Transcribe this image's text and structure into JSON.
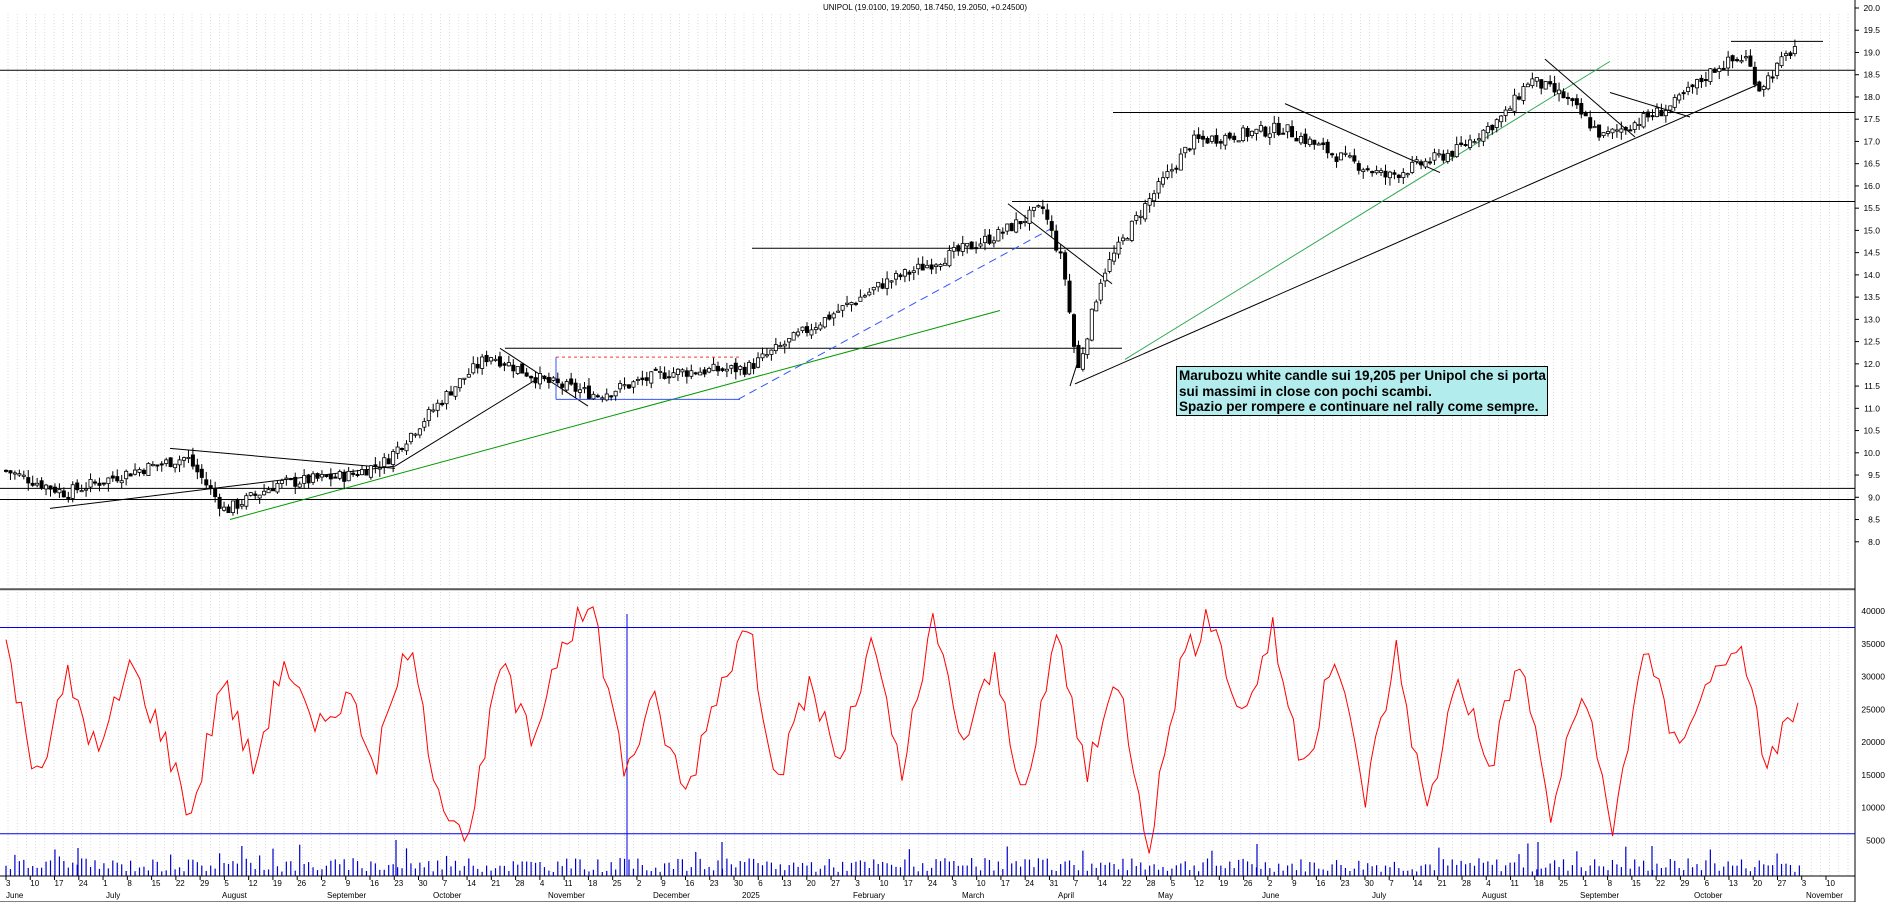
{
  "header": {
    "title": "UNIPOL (19.0100, 19.2050, 18.7450, 19.2050, +0.24500)"
  },
  "annotation": {
    "lines": [
      "Marubozu white candle sui 19,205 per Unipol che si porta",
      "sui massimi in close con pochi scambi.",
      "Spazio per rompere e continuare nel rally come sempre."
    ]
  },
  "chart_data": [
    {
      "type": "candlestick",
      "series_name": "UNIPOL",
      "ylim": [
        7.5,
        20.0
      ],
      "y_ticks": [
        "8.0",
        "8.5",
        "9.0",
        "9.5",
        "10.0",
        "10.5",
        "11.0",
        "11.5",
        "12.0",
        "12.5",
        "13.0",
        "13.5",
        "14.0",
        "14.5",
        "15.0",
        "15.5",
        "16.0",
        "16.5",
        "17.0",
        "17.5",
        "18.0",
        "18.5",
        "19.0",
        "19.5",
        "20.0"
      ],
      "last_bar": {
        "open": 19.01,
        "high": 19.205,
        "low": 18.745,
        "close": 19.205,
        "change": 0.245
      },
      "horizontal_levels": [
        8.95,
        9.2,
        12.35,
        14.6,
        15.65,
        17.65,
        18.6,
        19.25
      ],
      "close_path": [
        [
          "2024-06-03",
          9.6
        ],
        [
          "2024-06-20",
          9.1
        ],
        [
          "2024-07-10",
          9.6
        ],
        [
          "2024-07-25",
          9.9
        ],
        [
          "2024-08-05",
          8.7
        ],
        [
          "2024-08-20",
          9.3
        ],
        [
          "2024-09-10",
          9.5
        ],
        [
          "2024-09-20",
          9.8
        ],
        [
          "2024-10-10",
          11.5
        ],
        [
          "2024-10-20",
          12.2
        ],
        [
          "2024-11-05",
          11.6
        ],
        [
          "2024-11-20",
          11.3
        ],
        [
          "2024-12-10",
          11.8
        ],
        [
          "2025-01-02",
          11.9
        ],
        [
          "2025-01-20",
          12.8
        ],
        [
          "2025-02-10",
          13.8
        ],
        [
          "2025-02-25",
          14.3
        ],
        [
          "2025-03-15",
          14.9
        ],
        [
          "2025-03-28",
          15.5
        ],
        [
          "2025-04-03",
          14.2
        ],
        [
          "2025-04-07",
          11.8
        ],
        [
          "2025-04-14",
          14.0
        ],
        [
          "2025-04-25",
          15.4
        ],
        [
          "2025-05-10",
          17.0
        ],
        [
          "2025-06-05",
          17.3
        ],
        [
          "2025-06-20",
          16.7
        ],
        [
          "2025-07-05",
          16.2
        ],
        [
          "2025-07-25",
          16.8
        ],
        [
          "2025-08-08",
          17.6
        ],
        [
          "2025-08-15",
          18.4
        ],
        [
          "2025-08-25",
          18.0
        ],
        [
          "2025-09-05",
          17.1
        ],
        [
          "2025-09-25",
          17.8
        ],
        [
          "2025-10-08",
          18.7
        ],
        [
          "2025-10-16",
          18.9
        ],
        [
          "2025-10-20",
          18.2
        ],
        [
          "2025-10-31",
          19.205
        ]
      ]
    },
    {
      "type": "line",
      "series_name": "Volume line",
      "ylim": [
        0,
        42000
      ],
      "y_ticks": [
        "5000",
        "10000",
        "15000",
        "20000",
        "25000",
        "30000",
        "35000",
        "40000"
      ],
      "horizontal_levels": [
        6000,
        37500
      ],
      "values_approx": [
        35000,
        14000,
        30000,
        18000,
        32000,
        22000,
        9000,
        30000,
        16000,
        33000,
        21000,
        28000,
        17000,
        35000,
        13000,
        5000,
        32000,
        20000,
        36000,
        40500,
        16000,
        26000,
        12000,
        28000,
        38000,
        14000,
        29000,
        17000,
        35000,
        15000,
        38000,
        20000,
        32000,
        11000,
        37000,
        15000,
        30000,
        4500,
        32000,
        39000,
        24000,
        37000,
        15000,
        33000,
        12000,
        34000,
        9000,
        31000,
        16000,
        33000,
        9000,
        28000,
        6000,
        35000,
        20000,
        28000,
        36000,
        17000,
        26000
      ]
    }
  ],
  "x_axis": {
    "day_labels": [
      "3",
      "10",
      "17",
      "24",
      "1",
      "8",
      "15",
      "22",
      "29",
      "5",
      "12",
      "19",
      "26",
      "2",
      "9",
      "16",
      "23",
      "30",
      "7",
      "14",
      "21",
      "28",
      "4",
      "11",
      "18",
      "25",
      "2",
      "9",
      "16",
      "23",
      "30",
      "6",
      "13",
      "20",
      "27",
      "3",
      "10",
      "17",
      "24",
      "3",
      "10",
      "17",
      "24",
      "31",
      "7",
      "14",
      "22",
      "28",
      "5",
      "12",
      "19",
      "26",
      "2",
      "9",
      "16",
      "23",
      "30",
      "7",
      "14",
      "21",
      "28",
      "4",
      "11",
      "18",
      "25",
      "1",
      "8",
      "15",
      "22",
      "29",
      "6",
      "13",
      "20",
      "27",
      "3",
      "10"
    ],
    "month_labels": [
      "June",
      "July",
      "August",
      "September",
      "October",
      "November",
      "December",
      "2025",
      "February",
      "March",
      "April",
      "May",
      "June",
      "July",
      "August",
      "September",
      "October",
      "November"
    ]
  }
}
